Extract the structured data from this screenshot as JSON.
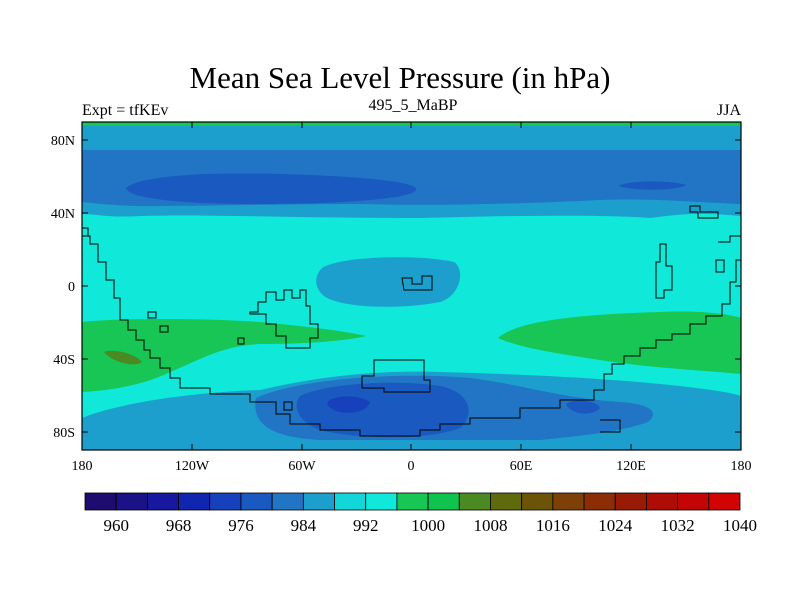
{
  "title": "Mean Sea Level Pressure (in hPa)",
  "subtitle_left": "Expt = tfKEv",
  "subtitle_center": "495_5_MaBP",
  "subtitle_right": "JJA",
  "axes": {
    "x_ticks": [
      "180",
      "120W",
      "60W",
      "0",
      "60E",
      "120E",
      "180"
    ],
    "y_ticks": [
      "80N",
      "40N",
      "0",
      "40S",
      "80S"
    ]
  },
  "colorbar": {
    "colors": [
      "#1e0c6e",
      "#1c1287",
      "#17189f",
      "#1026b0",
      "#1740bd",
      "#1a59c0",
      "#2175c4",
      "#1c9fcc",
      "#13d6d8",
      "#10e8d9",
      "#17c654",
      "#10c24e",
      "#4b8a23",
      "#5e6a0c",
      "#6b5307",
      "#7d4006",
      "#8d2d05",
      "#9a1b05",
      "#ad0d05",
      "#c40505",
      "#d10303"
    ],
    "labels": [
      "960",
      "968",
      "976",
      "984",
      "992",
      "1000",
      "1008",
      "1016",
      "1024",
      "1032",
      "1040"
    ]
  }
}
